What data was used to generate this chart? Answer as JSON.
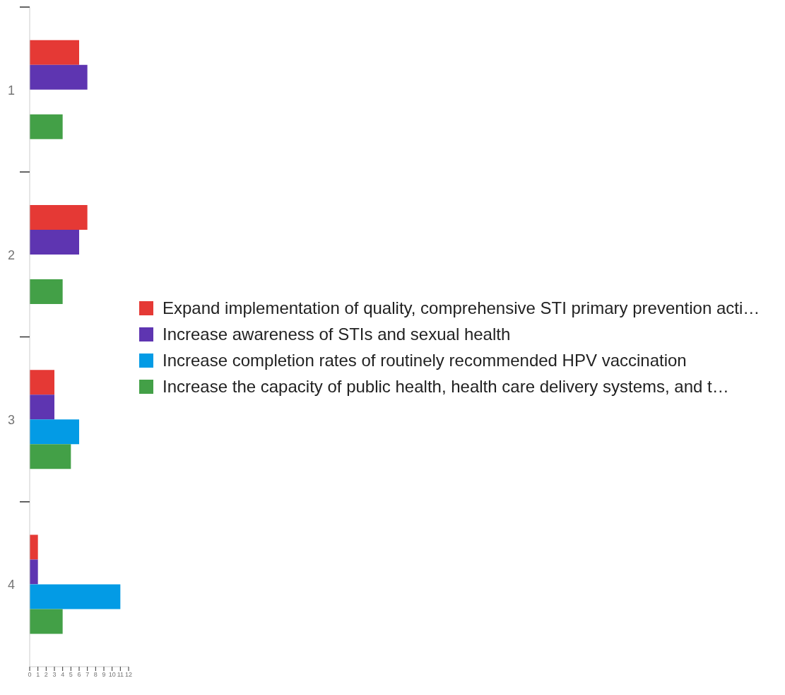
{
  "chart_data": {
    "type": "bar",
    "orientation": "horizontal",
    "categories": [
      "1",
      "2",
      "3",
      "4"
    ],
    "series": [
      {
        "name": "Expand implementation of quality, comprehensive STI primary prevention acti…",
        "color": "#e53935",
        "values": [
          6,
          7,
          3,
          1
        ]
      },
      {
        "name": "Increase awareness of STIs and sexual health",
        "color": "#5e35b1",
        "values": [
          7,
          6,
          3,
          1
        ]
      },
      {
        "name": "Increase completion rates of routinely recommended HPV vaccination",
        "color": "#039be5",
        "values": [
          null,
          null,
          6,
          11
        ]
      },
      {
        "name": "Increase the capacity of public health, health care delivery systems, and t…",
        "color": "#43a047",
        "values": [
          4,
          4,
          5,
          4
        ]
      }
    ],
    "xlim": [
      0,
      12
    ],
    "xticks": [
      0,
      1,
      2,
      3,
      4,
      5,
      6,
      7,
      8,
      9,
      10,
      11,
      12
    ],
    "legend": "right"
  }
}
